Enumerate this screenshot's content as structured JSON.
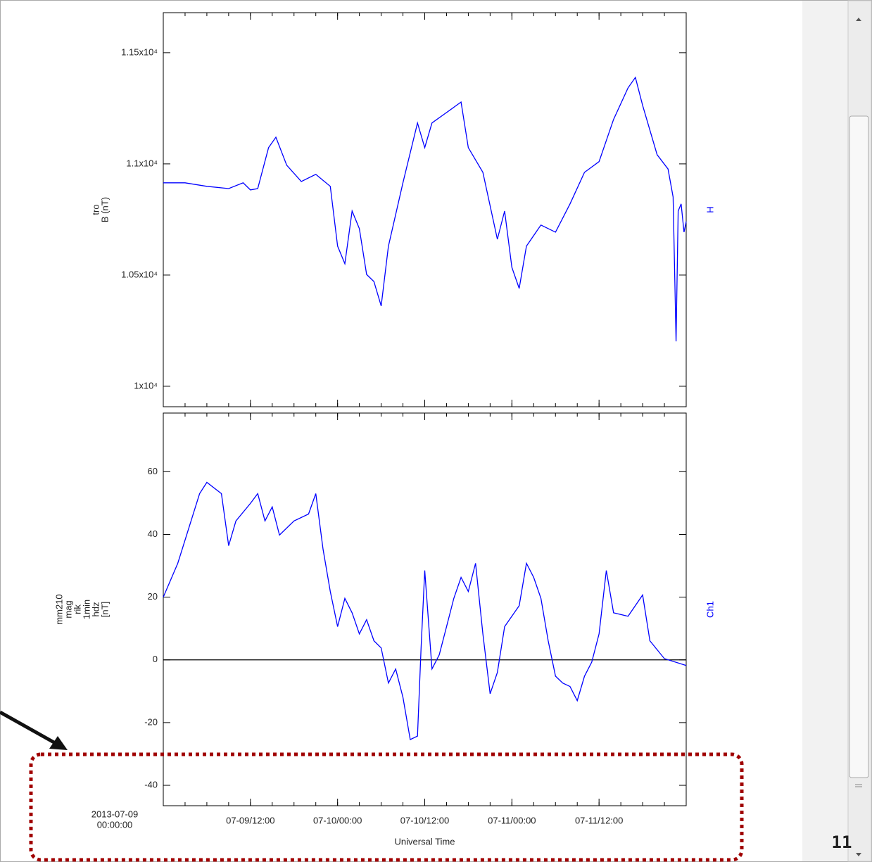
{
  "chart_data": [
    {
      "type": "line",
      "ylabel": [
        "tro",
        "B (nT)"
      ],
      "x": [
        "07-09/00:00",
        "07-09/03:00",
        "07-09/06:00",
        "07-09/09:00",
        "07-09/11:00",
        "07-09/12:00",
        "07-09/13:00",
        "07-09/14:30",
        "07-09/15:30",
        "07-09/17:00",
        "07-09/19:00",
        "07-09/21:00",
        "07-09/23:00",
        "07-10/00:00",
        "07-10/01:00",
        "07-10/02:00",
        "07-10/03:00",
        "07-10/04:00",
        "07-10/05:00",
        "07-10/06:00",
        "07-10/07:00",
        "07-10/09:00",
        "07-10/11:00",
        "07-10/12:00",
        "07-10/13:00",
        "07-10/15:00",
        "07-10/17:00",
        "07-10/18:00",
        "07-10/20:00",
        "07-10/22:00",
        "07-10/23:00",
        "07-11/00:00",
        "07-11/01:00",
        "07-11/02:00",
        "07-11/04:00",
        "07-11/06:00",
        "07-11/08:00",
        "07-11/10:00",
        "07-11/12:00",
        "07-11/14:00",
        "07-11/16:00",
        "07-11/17:00",
        "07-11/18:00",
        "07-11/20:00",
        "07-11/21:30",
        "07-11/22:12",
        "07-11/22:36",
        "07-11/22:54",
        "07-11/23:18",
        "07-11/23:42",
        "07-12/00:00"
      ],
      "series": [
        {
          "name": "H",
          "color": "#0000ff",
          "values": [
            10915,
            10915,
            10899,
            10889,
            10915,
            10883,
            10889,
            11073,
            11120,
            10994,
            10921,
            10953,
            10899,
            10630,
            10551,
            10788,
            10709,
            10503,
            10471,
            10361,
            10630,
            10915,
            11184,
            11073,
            11184,
            11231,
            11278,
            11073,
            10962,
            10661,
            10788,
            10535,
            10440,
            10630,
            10725,
            10693,
            10820,
            10962,
            11010,
            11200,
            11342,
            11389,
            11263,
            11041,
            10977,
            10851,
            10202,
            10788,
            10820,
            10693,
            10741
          ]
        }
      ],
      "xlim": [
        "07-09/00:00",
        "07-12/00:00"
      ],
      "ylim": [
        9908,
        11680
      ],
      "yticks": [
        {
          "value": 11500,
          "label": "1.15x10⁴"
        },
        {
          "value": 11000,
          "label": "1.1x10⁴"
        },
        {
          "value": 10500,
          "label": "1.05x10⁴"
        },
        {
          "value": 10000,
          "label": "1x10⁴"
        }
      ]
    },
    {
      "type": "line",
      "ylabel": [
        "mm210",
        "mag",
        "rik",
        "1min",
        "hdz",
        "[nT]"
      ],
      "xlabel": "Universal Time",
      "start_date": "2013-07-09",
      "start_time": "00:00:00",
      "x": [
        "07-09/00:00",
        "07-09/02:00",
        "07-09/05:00",
        "07-09/06:00",
        "07-09/08:00",
        "07-09/09:00",
        "07-09/10:00",
        "07-09/12:00",
        "07-09/13:00",
        "07-09/14:00",
        "07-09/15:00",
        "07-09/16:00",
        "07-09/18:00",
        "07-09/20:00",
        "07-09/21:00",
        "07-09/22:00",
        "07-09/23:00",
        "07-10/00:00",
        "07-10/01:00",
        "07-10/02:00",
        "07-10/03:00",
        "07-10/04:00",
        "07-10/05:00",
        "07-10/06:00",
        "07-10/07:00",
        "07-10/08:00",
        "07-10/09:00",
        "07-10/10:00",
        "07-10/11:00",
        "07-10/11:30",
        "07-10/12:00",
        "07-10/13:00",
        "07-10/14:00",
        "07-10/15:00",
        "07-10/16:00",
        "07-10/17:00",
        "07-10/18:00",
        "07-10/19:00",
        "07-10/20:00",
        "07-10/21:00",
        "07-10/22:00",
        "07-10/23:00",
        "07-11/01:00",
        "07-11/02:00",
        "07-11/03:00",
        "07-11/04:00",
        "07-11/05:00",
        "07-11/06:00",
        "07-11/07:00",
        "07-11/08:00",
        "07-11/09:00",
        "07-11/10:00",
        "07-11/11:00",
        "07-11/12:00",
        "07-11/13:00",
        "07-11/14:00",
        "07-11/16:00",
        "07-11/18:00",
        "07-11/19:00",
        "07-11/21:00",
        "07-12/00:00"
      ],
      "series": [
        {
          "name": "Ch1",
          "color": "#0000ff",
          "values": [
            20,
            30.8,
            53,
            56.6,
            53,
            36.4,
            44.3,
            49.9,
            53,
            44.3,
            48.8,
            39.8,
            44.3,
            46.5,
            53,
            35.3,
            21.8,
            10.6,
            19.6,
            15,
            8.3,
            12.8,
            6.1,
            3.8,
            -7.4,
            -2.9,
            -11.9,
            -25.4,
            -24.3,
            3.8,
            28.5,
            -2.9,
            1.6,
            10.6,
            19.6,
            26.3,
            21.8,
            30.8,
            8.3,
            -10.8,
            -4,
            10.6,
            17.3,
            30.8,
            26.3,
            19.6,
            6.1,
            -5.2,
            -7.4,
            -8.5,
            -13,
            -5.2,
            -0.7,
            8.3,
            28.5,
            15,
            13.9,
            20.7,
            6.1,
            0.4,
            -1.8
          ]
        }
      ],
      "reference_line": 0,
      "xlim": [
        "07-09/00:00",
        "07-12/00:00"
      ],
      "xticks": [
        "07-09/12:00",
        "07-10/00:00",
        "07-10/12:00",
        "07-11/00:00",
        "07-11/12:00"
      ],
      "ylim": [
        -46.5,
        78.7
      ],
      "yticks": [
        60,
        40,
        20,
        0,
        -20,
        -40
      ]
    }
  ],
  "page_number": "11"
}
